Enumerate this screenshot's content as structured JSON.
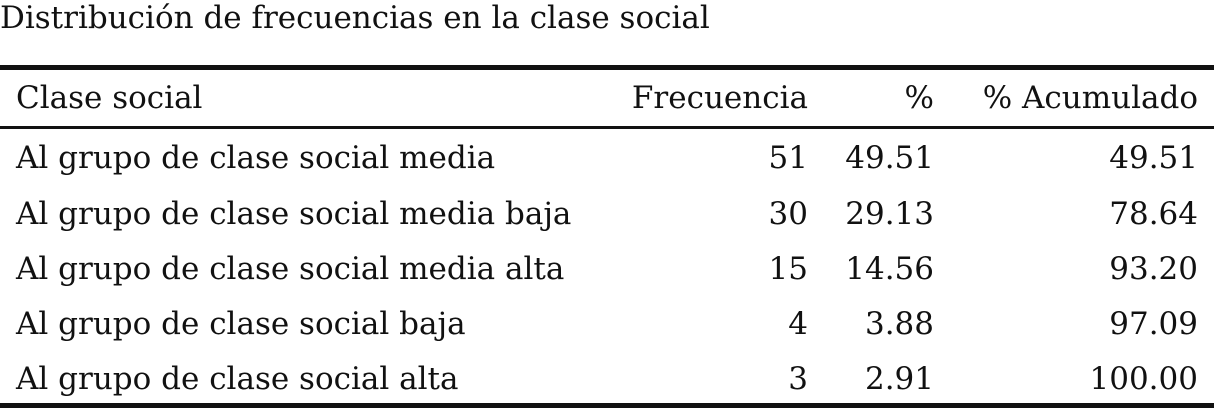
{
  "chart_data": {
    "type": "table",
    "title": "Distribución de frecuencias en la clase social",
    "columns": [
      "Clase social",
      "Frecuencia",
      "%",
      "% Acumulado"
    ],
    "rows": [
      {
        "label": "Al grupo de clase social media",
        "frecuencia": "51",
        "pct": "49.51",
        "acumulado": "49.51"
      },
      {
        "label": "Al grupo de clase social media baja",
        "frecuencia": "30",
        "pct": "29.13",
        "acumulado": "78.64"
      },
      {
        "label": "Al grupo de clase social media alta",
        "frecuencia": "15",
        "pct": "14.56",
        "acumulado": "93.20"
      },
      {
        "label": "Al grupo de clase social baja",
        "frecuencia": "4",
        "pct": "3.88",
        "acumulado": "97.09"
      },
      {
        "label": "Al grupo de clase social alta",
        "frecuencia": "3",
        "pct": "2.91",
        "acumulado": "100.00"
      }
    ]
  }
}
